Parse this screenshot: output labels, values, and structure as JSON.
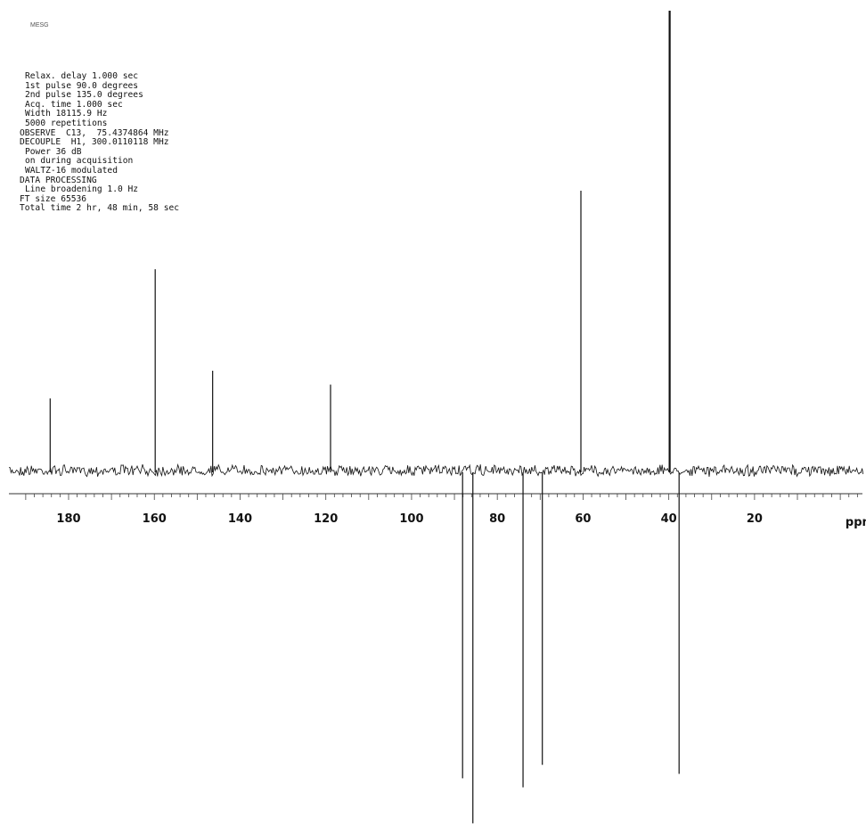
{
  "sample_id": "MESG",
  "parameters": [
    {
      "text": "Relax. delay 1.000 sec",
      "indent": true
    },
    {
      "text": "1st pulse 90.0 degrees",
      "indent": true
    },
    {
      "text": "2nd pulse 135.0 degrees",
      "indent": true
    },
    {
      "text": "Acq. time 1.000 sec",
      "indent": true
    },
    {
      "text": "Width 18115.9 Hz",
      "indent": true
    },
    {
      "text": "5000 repetitions",
      "indent": true
    },
    {
      "text": "OBSERVE  C13,  75.4374864 MHz",
      "indent": false
    },
    {
      "text": "DECOUPLE  H1, 300.0110118 MHz",
      "indent": false
    },
    {
      "text": "Power 36 dB",
      "indent": true
    },
    {
      "text": "on during acquisition",
      "indent": true
    },
    {
      "text": "WALTZ-16 modulated",
      "indent": true
    },
    {
      "text": "DATA PROCESSING",
      "indent": false
    },
    {
      "text": "Line broadening 1.0 Hz",
      "indent": true
    },
    {
      "text": "FT size 65536",
      "indent": false
    },
    {
      "text": "Total time 2 hr, 48 min, 58 sec",
      "indent": false
    }
  ],
  "chart_data": {
    "type": "line",
    "title": "",
    "xlabel": "ppm",
    "ylabel": "",
    "xlim": [
      196,
      -6
    ],
    "x_reversed": true,
    "xticks": [
      180,
      160,
      140,
      120,
      100,
      80,
      60,
      40,
      20
    ],
    "xtick_labels": [
      "180",
      "160",
      "140",
      "120",
      "100",
      "80",
      "60",
      "40",
      "20"
    ],
    "ylim": [
      -1.0,
      1.0
    ],
    "grid": false,
    "series": [
      {
        "peaks": [
          {
            "ppm": 184.3,
            "intensity": 0.16
          },
          {
            "ppm": 159.8,
            "intensity": 0.44
          },
          {
            "ppm": 146.4,
            "intensity": 0.22
          },
          {
            "ppm": 118.9,
            "intensity": 0.19
          },
          {
            "ppm": 88.1,
            "intensity": -0.68
          },
          {
            "ppm": 85.7,
            "intensity": -0.78
          },
          {
            "ppm": 74.0,
            "intensity": -0.7
          },
          {
            "ppm": 69.5,
            "intensity": -0.65
          },
          {
            "ppm": 60.5,
            "intensity": 0.61
          },
          {
            "ppm": 39.8,
            "intensity": 1.0
          },
          {
            "ppm": 37.6,
            "intensity": -0.67
          }
        ]
      }
    ]
  }
}
